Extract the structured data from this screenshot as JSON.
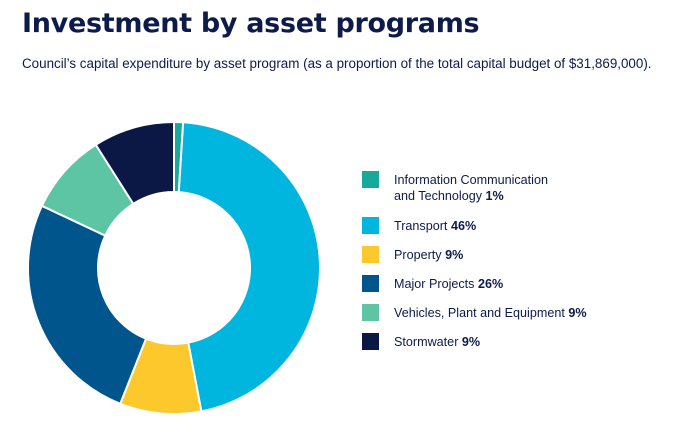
{
  "title": "Investment by asset programs",
  "subtitle": "Council’s capital expenditure by asset program (as a proportion of the total capital budget of $31,869,000).",
  "chart_data": {
    "type": "pie",
    "donut": true,
    "legend_position": "right",
    "slices": [
      {
        "label_lines": [
          "Information Communication",
          "and Technology"
        ],
        "value": 1,
        "value_label": "1%",
        "color": "#17a99a"
      },
      {
        "label_lines": [
          "Transport"
        ],
        "value": 46,
        "value_label": "46%",
        "color": "#00b5de"
      },
      {
        "label_lines": [
          "Property"
        ],
        "value": 9,
        "value_label": "9%",
        "color": "#fdc82b"
      },
      {
        "label_lines": [
          "Major Projects"
        ],
        "value": 26,
        "value_label": "26%",
        "color": "#00558c"
      },
      {
        "label_lines": [
          "Vehicles, Plant and Equipment"
        ],
        "value": 9,
        "value_label": "9%",
        "color": "#5dc4a4"
      },
      {
        "label_lines": [
          "Stormwater"
        ],
        "value": 9,
        "value_label": "9%",
        "color": "#0b1846"
      }
    ]
  }
}
